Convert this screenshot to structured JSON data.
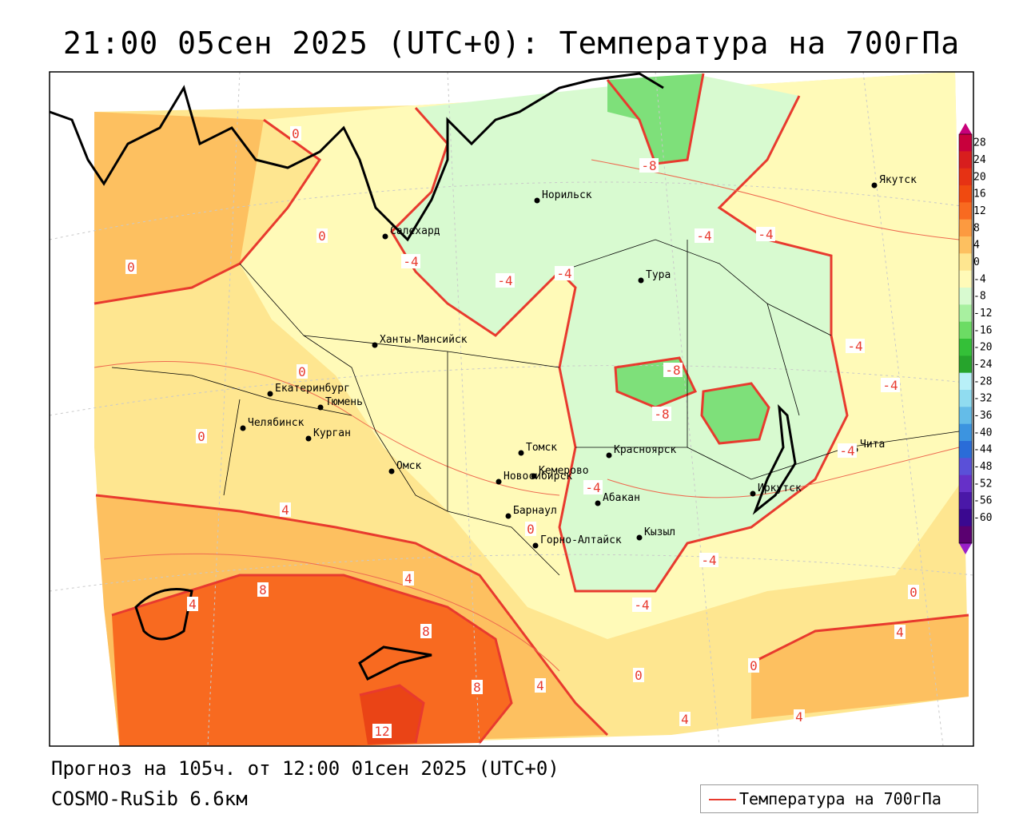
{
  "title": "21:00 05сен 2025 (UTC+0): Температура на 700гПа",
  "forecast_text": "Прогноз на 105ч. от 12:00 01сен 2025 (UTC+0)",
  "model_text": "COSMO-RuSib 6.6км",
  "legend": {
    "label": "Температура на 700гПа",
    "color": "#e83a2e"
  },
  "colorbar": {
    "labels": [
      "28",
      "24",
      "20",
      "16",
      "12",
      "8",
      "4",
      "0",
      "-4",
      "-8",
      "-12",
      "-16",
      "-20",
      "-24",
      "-28",
      "-32",
      "-36",
      "-40",
      "-44",
      "-48",
      "-52",
      "-56",
      "-60"
    ],
    "colors": [
      "#c8003c",
      "#d81e1e",
      "#e63214",
      "#f04a10",
      "#f86a20",
      "#fc9a40",
      "#fdc060",
      "#fee690",
      "#fffab8",
      "#d8fad0",
      "#a8f0a0",
      "#6cdc64",
      "#34c038",
      "#26a42c",
      "#b8f0f8",
      "#90dcf0",
      "#64bce8",
      "#3c94e0",
      "#2a6cd8",
      "#5a50d8",
      "#6630c8",
      "#4a18a8",
      "#3a0890",
      "#5a0070"
    ]
  },
  "cities": [
    {
      "name": "Норильск"
    },
    {
      "name": "Якутск"
    },
    {
      "name": "Салехард"
    },
    {
      "name": "Тура"
    },
    {
      "name": "Ханты-Мансийск"
    },
    {
      "name": "Екатеринбург"
    },
    {
      "name": "Тюмень"
    },
    {
      "name": "Челябинск"
    },
    {
      "name": "Курган"
    },
    {
      "name": "Омск"
    },
    {
      "name": "Томск"
    },
    {
      "name": "Красноярск"
    },
    {
      "name": "Новосибирск"
    },
    {
      "name": "Кемерово"
    },
    {
      "name": "Абакан"
    },
    {
      "name": "Иркутск"
    },
    {
      "name": "Чита"
    },
    {
      "name": "Барнаул"
    },
    {
      "name": "Кызыл"
    },
    {
      "name": "Горно-Алтайск"
    }
  ],
  "isotherm_labels": [
    "0",
    "-8",
    "-4",
    "-4",
    "-4",
    "-4",
    "-4",
    "-4",
    "0",
    "0",
    "0",
    "0",
    "-8",
    "-8",
    "-4",
    "-4",
    "-4",
    "4",
    "0",
    "4",
    "8",
    "4",
    "8",
    "8",
    "4",
    "12",
    "-4",
    "-4",
    "0",
    "0",
    "4",
    "4",
    "0",
    "4"
  ]
}
